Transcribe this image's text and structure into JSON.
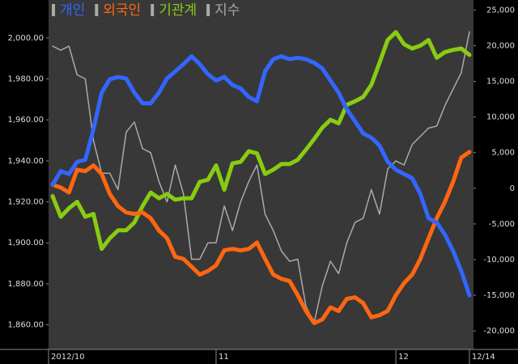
{
  "chart_data": {
    "type": "line",
    "categories": [
      "2012/10",
      null,
      null,
      null,
      null,
      null,
      null,
      null,
      null,
      null,
      null,
      null,
      null,
      null,
      null,
      null,
      null,
      null,
      null,
      null,
      "11",
      null,
      null,
      null,
      null,
      null,
      null,
      null,
      null,
      null,
      null,
      null,
      null,
      null,
      null,
      null,
      null,
      null,
      null,
      null,
      null,
      null,
      "12",
      null,
      null,
      null,
      null,
      null,
      null,
      null,
      null,
      "12/14"
    ],
    "series": [
      {
        "name": "개인",
        "color": "#3366ff",
        "axis": "y2",
        "values": [
          500,
          2400,
          2000,
          3700,
          4000,
          8300,
          13400,
          15300,
          15600,
          15400,
          13400,
          11900,
          11900,
          13400,
          15400,
          16400,
          17400,
          18500,
          17400,
          16000,
          15100,
          15600,
          14500,
          14000,
          12800,
          12200,
          16400,
          18100,
          18500,
          18100,
          18300,
          18100,
          17600,
          16800,
          15100,
          13400,
          11100,
          9400,
          7700,
          7100,
          6000,
          3700,
          2600,
          2000,
          1400,
          -800,
          -4200,
          -4800,
          -6500,
          -8800,
          -11600,
          -15000
        ]
      },
      {
        "name": "외국인",
        "color": "#ff6611",
        "axis": "y2",
        "values": [
          500,
          100,
          -600,
          2600,
          2400,
          3200,
          2000,
          -800,
          -2500,
          -3400,
          -3600,
          -3400,
          -4200,
          -5900,
          -7000,
          -9600,
          -9900,
          -11000,
          -12100,
          -11600,
          -10800,
          -8700,
          -8500,
          -8700,
          -8500,
          -7600,
          -9900,
          -12100,
          -12700,
          -13000,
          -15000,
          -17200,
          -18900,
          -18400,
          -16700,
          -17200,
          -15500,
          -15300,
          -16100,
          -18100,
          -17800,
          -17200,
          -15000,
          -13300,
          -12100,
          -9900,
          -7000,
          -4200,
          -1900,
          900,
          4300,
          5100
        ]
      },
      {
        "name": "기관계",
        "color": "#88cc11",
        "axis": "y2",
        "values": [
          -1100,
          -4000,
          -2800,
          -1900,
          -4000,
          -3600,
          -8500,
          -7000,
          -5900,
          -5900,
          -4800,
          -2500,
          -600,
          -1400,
          -800,
          -1600,
          -1400,
          -1400,
          900,
          1200,
          3200,
          -200,
          3500,
          3700,
          5200,
          4900,
          2000,
          2600,
          3400,
          3400,
          4000,
          5400,
          6900,
          8500,
          9600,
          9100,
          11700,
          12200,
          12800,
          14500,
          17600,
          20800,
          21900,
          20200,
          19600,
          20000,
          20800,
          18300,
          19100,
          19400,
          19600,
          18700
        ]
      },
      {
        "name": "지수",
        "color": "#aaaaaa",
        "values": [
          1996,
          1994,
          1996,
          1982,
          1980,
          1950,
          1934,
          1934,
          1926,
          1954,
          1959,
          1946,
          1944,
          1930,
          1920,
          1938,
          1924,
          1892,
          1892,
          1900,
          1900,
          1918,
          1906,
          1920,
          1930,
          1938,
          1914,
          1906,
          1896,
          1891,
          1892,
          1869,
          1861,
          1879,
          1891,
          1885,
          1900,
          1910,
          1912,
          1926,
          1914,
          1936,
          1940,
          1938,
          1948,
          1952,
          1956,
          1957,
          1967,
          1975,
          1983,
          2003
        ]
      }
    ],
    "ylim": [
      1848,
      2018.5
    ],
    "yticks": [
      {
        "value": 1860,
        "label": "1,860.00"
      },
      {
        "value": 1880,
        "label": "1,880.00"
      },
      {
        "value": 1900,
        "label": "1,900.00"
      },
      {
        "value": 1920,
        "label": "1,920.00"
      },
      {
        "value": 1940,
        "label": "1,940.00"
      },
      {
        "value": 1960,
        "label": "1,960.00"
      },
      {
        "value": 1980,
        "label": "1,980.00"
      },
      {
        "value": 2000,
        "label": "2,000.00"
      }
    ],
    "y2lim": [
      -22600,
      26400
    ],
    "y2ticks": [
      {
        "value": -20000,
        "label": "-20,000"
      },
      {
        "value": -15000,
        "label": "-15,000"
      },
      {
        "value": -10000,
        "label": "-10,000"
      },
      {
        "value": -5000,
        "label": "-5,000"
      },
      0,
      {
        "value": 5000,
        "label": "5,000"
      },
      {
        "value": 10000,
        "label": "10,000"
      },
      {
        "value": 15000,
        "label": "15,000"
      },
      {
        "value": 20000,
        "label": "20,000"
      },
      {
        "value": 25000,
        "label": "25,000"
      }
    ]
  }
}
